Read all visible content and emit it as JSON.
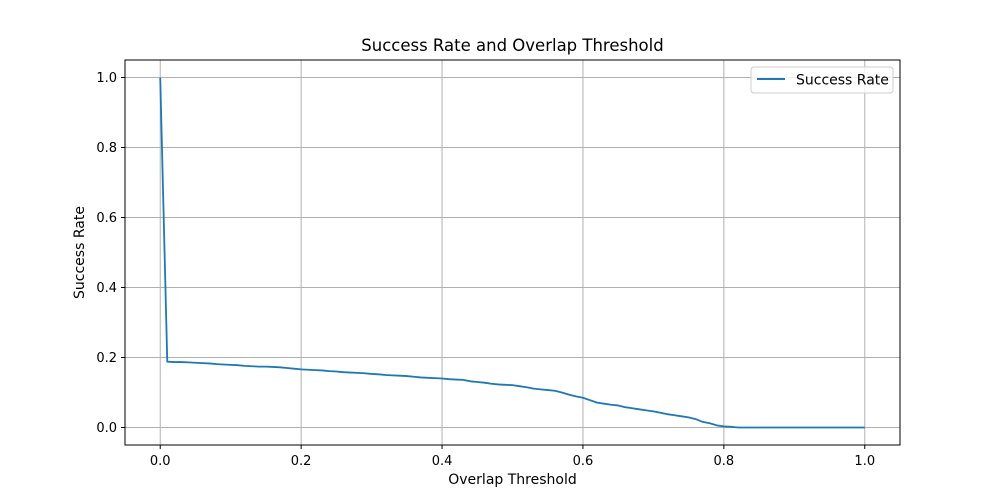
{
  "chart_data": {
    "type": "line",
    "title": "Success Rate and Overlap Threshold",
    "xlabel": "Overlap Threshold",
    "ylabel": "Success Rate",
    "xlim": [
      -0.05,
      1.05
    ],
    "ylim": [
      -0.05,
      1.05
    ],
    "xticks": [
      0.0,
      0.2,
      0.4,
      0.6,
      0.8,
      1.0
    ],
    "xtick_labels": [
      "0.0",
      "0.2",
      "0.4",
      "0.6",
      "0.8",
      "1.0"
    ],
    "yticks": [
      0.0,
      0.2,
      0.4,
      0.6,
      0.8,
      1.0
    ],
    "ytick_labels": [
      "0.0",
      "0.2",
      "0.4",
      "0.6",
      "0.8",
      "1.0"
    ],
    "grid": true,
    "legend_position": "upper right",
    "series": [
      {
        "name": "Success Rate",
        "color": "#1f77b4",
        "x": [
          0.0,
          0.01,
          0.02,
          0.03,
          0.04,
          0.05,
          0.06,
          0.07,
          0.08,
          0.09,
          0.1,
          0.11,
          0.12,
          0.13,
          0.14,
          0.15,
          0.16,
          0.17,
          0.18,
          0.19,
          0.2,
          0.21,
          0.22,
          0.23,
          0.24,
          0.25,
          0.26,
          0.27,
          0.28,
          0.29,
          0.3,
          0.31,
          0.32,
          0.33,
          0.34,
          0.35,
          0.36,
          0.37,
          0.38,
          0.39,
          0.4,
          0.41,
          0.42,
          0.43,
          0.44,
          0.45,
          0.46,
          0.47,
          0.48,
          0.49,
          0.5,
          0.51,
          0.52,
          0.53,
          0.54,
          0.55,
          0.56,
          0.57,
          0.58,
          0.59,
          0.6,
          0.61,
          0.62,
          0.63,
          0.64,
          0.65,
          0.66,
          0.67,
          0.68,
          0.69,
          0.7,
          0.71,
          0.72,
          0.73,
          0.74,
          0.75,
          0.76,
          0.77,
          0.78,
          0.79,
          0.8,
          0.81,
          0.82,
          0.83,
          0.84,
          0.85,
          0.86,
          0.87,
          0.88,
          0.89,
          0.9,
          0.91,
          0.92,
          0.93,
          0.94,
          0.95,
          0.96,
          0.97,
          0.98,
          0.99,
          1.0
        ],
        "y": [
          1.0,
          0.188,
          0.187,
          0.187,
          0.186,
          0.185,
          0.184,
          0.183,
          0.181,
          0.18,
          0.179,
          0.178,
          0.176,
          0.175,
          0.174,
          0.174,
          0.173,
          0.172,
          0.17,
          0.168,
          0.166,
          0.165,
          0.164,
          0.163,
          0.161,
          0.16,
          0.158,
          0.157,
          0.156,
          0.155,
          0.153,
          0.152,
          0.15,
          0.149,
          0.148,
          0.147,
          0.145,
          0.143,
          0.142,
          0.141,
          0.14,
          0.138,
          0.137,
          0.136,
          0.132,
          0.13,
          0.128,
          0.125,
          0.123,
          0.122,
          0.121,
          0.118,
          0.115,
          0.111,
          0.109,
          0.107,
          0.105,
          0.1,
          0.094,
          0.089,
          0.085,
          0.078,
          0.071,
          0.068,
          0.065,
          0.063,
          0.058,
          0.055,
          0.052,
          0.049,
          0.046,
          0.042,
          0.038,
          0.035,
          0.032,
          0.029,
          0.024,
          0.016,
          0.012,
          0.006,
          0.003,
          0.002,
          0.0,
          0.0,
          0.0,
          0.0,
          0.0,
          0.0,
          0.0,
          0.0,
          0.0,
          0.0,
          0.0,
          0.0,
          0.0,
          0.0,
          0.0,
          0.0,
          0.0,
          0.0,
          0.0
        ]
      }
    ]
  }
}
